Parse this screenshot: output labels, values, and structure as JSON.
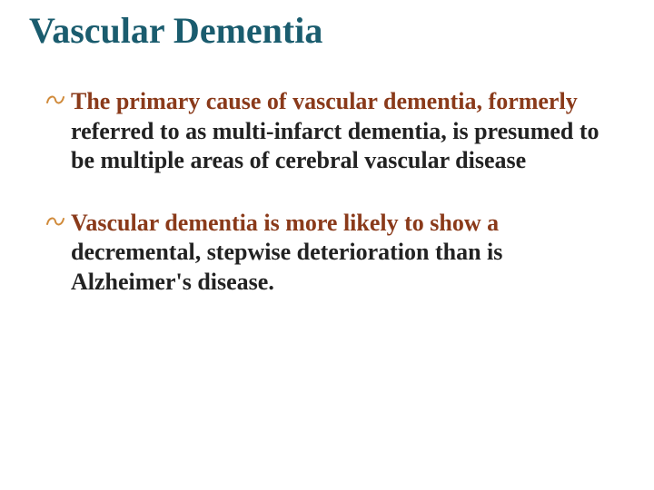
{
  "colors": {
    "title": "#1a5c6e",
    "bullet_marker": "#d08a3a",
    "accent": "#8a3a1a",
    "body": "#222222",
    "background": "#ffffff"
  },
  "typography": {
    "title_fontsize": 40,
    "body_fontsize": 26,
    "font_family": "Times New Roman",
    "title_weight": "bold",
    "body_weight": "bold"
  },
  "title": "Vascular Dementia",
  "bullets": [
    {
      "marker": "་",
      "first_word": "The",
      "rest_first_line": " primary cause of vascular dementia, formerly",
      "body": " referred to as multi-infarct dementia, is presumed to be multiple areas of cerebral vascular disease"
    },
    {
      "marker": "་",
      "first_word": "Vascular",
      "rest_first_line": " dementia is more likely to show a",
      "body": " decremental, stepwise deterioration than is Alzheimer's disease."
    }
  ]
}
